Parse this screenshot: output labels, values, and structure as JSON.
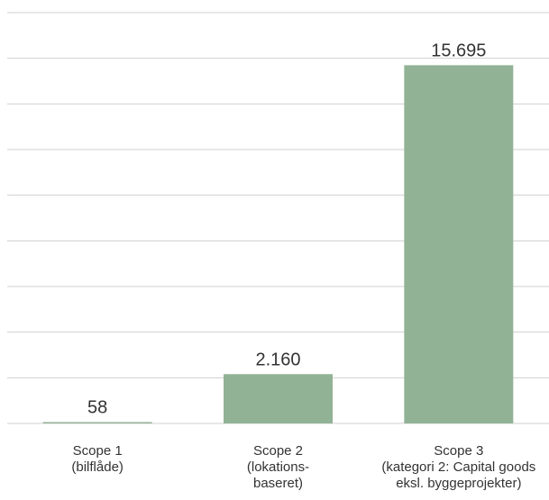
{
  "chart_data": {
    "type": "bar",
    "categories": [
      [
        "Scope 1",
        "(bilflåde)"
      ],
      [
        "Scope 2",
        "(lokations-",
        "baseret)"
      ],
      [
        "Scope 3",
        "(kategori 2: Capital goods",
        "eksl. byggeprojekter)"
      ]
    ],
    "values": [
      58,
      2160,
      15695
    ],
    "value_labels": [
      "58",
      "2.160",
      "15.695"
    ],
    "title": "",
    "xlabel": "",
    "ylabel": "",
    "ylim": [
      0,
      18000
    ],
    "grid": true,
    "bar_color": "#92b296",
    "grid_color": "#d0d0d0",
    "text_color": "#333333"
  }
}
